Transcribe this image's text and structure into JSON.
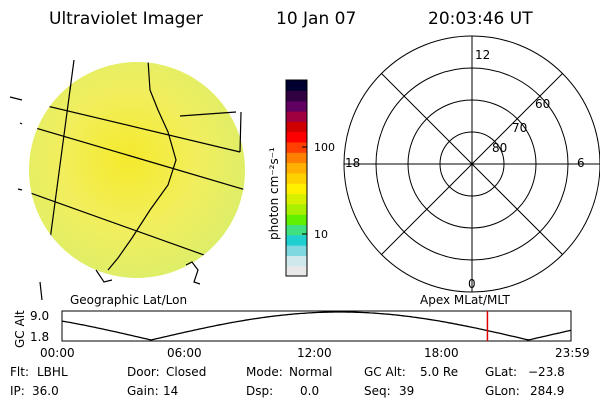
{
  "header": {
    "instrument": "Ultraviolet Imager",
    "date": "10 Jan 07",
    "time": "20:03:46 UT"
  },
  "colorbar": {
    "label": "photon cm⁻²s⁻¹",
    "ticks": [
      {
        "label": "100",
        "value": 100
      },
      {
        "label": "10",
        "value": 10
      }
    ],
    "colors": [
      "#e8e8e8",
      "#cfe8ec",
      "#7fd8e0",
      "#20d0d0",
      "#40e080",
      "#60f000",
      "#a8f000",
      "#d8f000",
      "#fff000",
      "#ffd000",
      "#ffb000",
      "#ff8000",
      "#ff4000",
      "#ff0000",
      "#d00000",
      "#a00040",
      "#600060",
      "#300040",
      "#000030"
    ]
  },
  "left_panel": {
    "label": "Geographic Lat/Lon",
    "colors": {
      "center": "#f4ea20",
      "mid": "#f0f060",
      "edge": "#d6f06c"
    }
  },
  "right_panel": {
    "label": "Apex MLat/MLT",
    "mlt_labels": {
      "top": "12",
      "left": "18",
      "right": "6",
      "bottom": "0"
    },
    "lat_labels": [
      "60",
      "70",
      "80"
    ]
  },
  "altitude_plot": {
    "ylabel": "GC Alt",
    "yticks": [
      "9.0",
      "1.8"
    ],
    "xticks": [
      "00:00",
      "06:00",
      "12:00",
      "18:00",
      "23:59"
    ],
    "current_time_hours": 20.06,
    "marker_color": "#e00000",
    "curve_description": "sinusoidal altitude variation"
  },
  "status": {
    "row1": [
      {
        "label": "Flt:",
        "value": "LBHL"
      },
      {
        "label": "Door:",
        "value": "Closed"
      },
      {
        "label": "Mode:",
        "value": "Normal"
      },
      {
        "label": "GC Alt:",
        "value": "5.0 Re"
      },
      {
        "label": "GLat:",
        "value": "−23.8"
      }
    ],
    "row2": [
      {
        "label": "IP:",
        "value": "36.0"
      },
      {
        "label": "Gain:",
        "value": "14"
      },
      {
        "label": "Dsp:",
        "value": "0.0"
      },
      {
        "label": "Seq:",
        "value": "39"
      },
      {
        "label": "GLon:",
        "value": "284.9"
      }
    ]
  }
}
